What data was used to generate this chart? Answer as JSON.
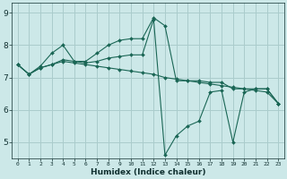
{
  "xlabel": "Humidex (Indice chaleur)",
  "ylabel": "",
  "bg_color": "#cce8e8",
  "grid_color": "#aacccc",
  "line_color": "#1a6655",
  "xlim": [
    -0.5,
    23.5
  ],
  "ylim": [
    4.5,
    9.3
  ],
  "xticks": [
    0,
    1,
    2,
    3,
    4,
    5,
    6,
    7,
    8,
    9,
    10,
    11,
    12,
    13,
    14,
    15,
    16,
    17,
    18,
    19,
    20,
    21,
    22,
    23
  ],
  "yticks": [
    5,
    6,
    7,
    8,
    9
  ],
  "line1_x": [
    0,
    1,
    2,
    3,
    4,
    5,
    6,
    7,
    8,
    9,
    10,
    11,
    12,
    13,
    14,
    15,
    16,
    17,
    18,
    19,
    20,
    21,
    22,
    23
  ],
  "line1_y": [
    7.4,
    7.1,
    7.3,
    7.4,
    7.55,
    7.5,
    7.5,
    7.75,
    8.0,
    8.15,
    8.2,
    8.2,
    8.85,
    8.6,
    6.9,
    6.9,
    6.9,
    6.85,
    6.85,
    6.65,
    6.65,
    6.65,
    6.65,
    6.2
  ],
  "line2_x": [
    0,
    1,
    2,
    3,
    4,
    5,
    6,
    7,
    8,
    9,
    10,
    11,
    12,
    13,
    14,
    15,
    16,
    17,
    18,
    19,
    20,
    21,
    22,
    23
  ],
  "line2_y": [
    7.4,
    7.1,
    7.35,
    7.75,
    8.0,
    7.5,
    7.45,
    7.5,
    7.6,
    7.65,
    7.7,
    7.7,
    8.8,
    4.6,
    5.2,
    5.5,
    5.65,
    6.55,
    6.6,
    5.0,
    6.55,
    6.65,
    6.65,
    6.2
  ],
  "line3_x": [
    0,
    1,
    2,
    3,
    4,
    5,
    6,
    7,
    8,
    9,
    10,
    11,
    12,
    13,
    14,
    15,
    16,
    17,
    18,
    19,
    20,
    21,
    22,
    23
  ],
  "line3_y": [
    7.4,
    7.1,
    7.3,
    7.4,
    7.5,
    7.45,
    7.4,
    7.35,
    7.3,
    7.25,
    7.2,
    7.15,
    7.1,
    7.0,
    6.95,
    6.9,
    6.85,
    6.8,
    6.75,
    6.7,
    6.65,
    6.6,
    6.55,
    6.2
  ]
}
